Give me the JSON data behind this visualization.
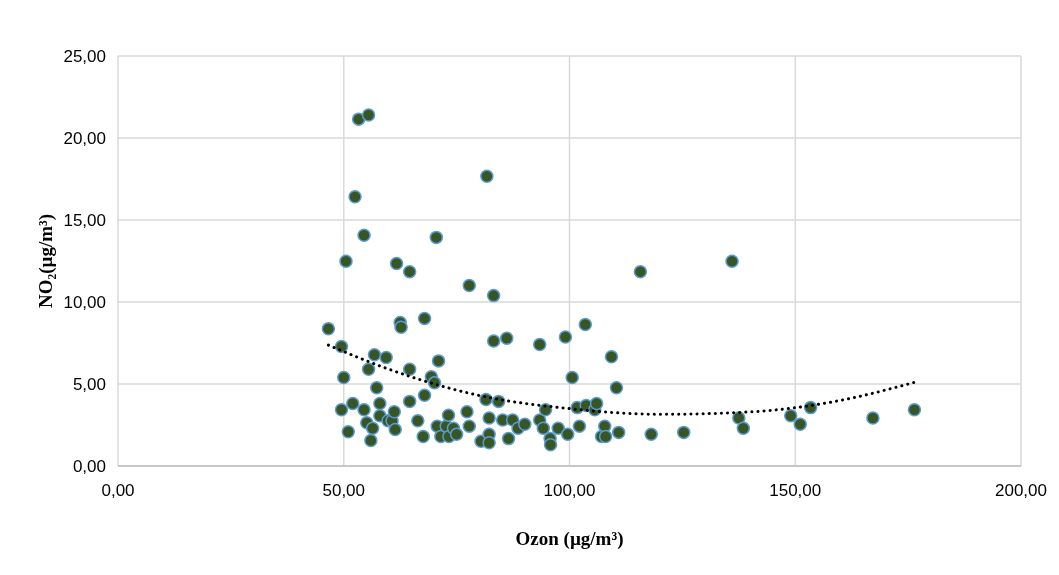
{
  "chart_data": {
    "type": "scatter",
    "xlabel": "Ozon (µg/m³)",
    "ylabel": "NO₂(µg/m³)",
    "xlim": [
      0,
      200
    ],
    "ylim": [
      0,
      25
    ],
    "xticks": [
      {
        "value": 0,
        "label": "0,00"
      },
      {
        "value": 50,
        "label": "50,00"
      },
      {
        "value": 100,
        "label": "100,00"
      },
      {
        "value": 150,
        "label": "150,00"
      },
      {
        "value": 200,
        "label": "200,00"
      }
    ],
    "yticks": [
      {
        "value": 0,
        "label": "0,00"
      },
      {
        "value": 5,
        "label": "5,00"
      },
      {
        "value": 10,
        "label": "10,00"
      },
      {
        "value": 15,
        "label": "15,00"
      },
      {
        "value": 20,
        "label": "20,00"
      },
      {
        "value": 25,
        "label": "25,00"
      }
    ],
    "grid": true,
    "marker": "circle",
    "series": [
      {
        "color": "#375623",
        "x": [
          46.6,
          49.5,
          50.0,
          49.5,
          50.5,
          51.0,
          52.0,
          52.5,
          53.3,
          55.5,
          54.5,
          54.5,
          55.1,
          55.5,
          56.0,
          56.4,
          56.8,
          57.3,
          58.0,
          58.0,
          59.4,
          59.8,
          60.7,
          61.2,
          61.4,
          61.7,
          62.5,
          62.7,
          64.6,
          64.6,
          64.6,
          66.4,
          67.6,
          67.9,
          67.9,
          69.4,
          70.1,
          70.5,
          70.7,
          71.0,
          71.5,
          72.7,
          73.2,
          73.3,
          74.3,
          75.0,
          77.3,
          77.8,
          77.8,
          80.4,
          81.5,
          81.7,
          82.2,
          82.2,
          82.2,
          83.2,
          83.2,
          84.3,
          85.2,
          86.1,
          86.5,
          87.4,
          88.6,
          90.1,
          93.4,
          93.4,
          94.2,
          94.7,
          95.7,
          95.8,
          97.5,
          99.1,
          99.6,
          100.6,
          101.7,
          102.2,
          103.5,
          103.7,
          105.6,
          106.0,
          107.1,
          107.8,
          108.0,
          109.3,
          110.4,
          110.9,
          115.7,
          118.1,
          125.3,
          136.0,
          137.5,
          138.5,
          149.0,
          151.1,
          153.4,
          167.2,
          176.4
        ],
        "values": [
          8.37,
          7.29,
          5.4,
          3.43,
          12.48,
          2.09,
          3.81,
          16.42,
          21.15,
          21.4,
          14.07,
          3.43,
          2.64,
          5.9,
          1.55,
          2.3,
          6.78,
          4.77,
          3.81,
          3.06,
          6.62,
          2.76,
          2.76,
          3.31,
          2.22,
          12.35,
          8.75,
          8.46,
          11.85,
          3.94,
          5.9,
          2.76,
          1.8,
          9.0,
          4.31,
          5.44,
          5.07,
          13.94,
          2.43,
          6.41,
          1.8,
          2.43,
          3.1,
          1.8,
          2.3,
          1.93,
          3.31,
          11.01,
          2.43,
          1.51,
          4.06,
          17.67,
          2.93,
          1.93,
          1.42,
          10.39,
          7.62,
          3.94,
          2.81,
          7.79,
          1.67,
          2.81,
          2.3,
          2.55,
          7.41,
          2.81,
          2.3,
          3.43,
          1.67,
          1.3,
          2.3,
          7.87,
          1.93,
          5.4,
          3.56,
          2.43,
          8.63,
          3.69,
          3.43,
          3.81,
          1.8,
          2.43,
          1.8,
          6.66,
          4.77,
          2.05,
          11.85,
          1.93,
          2.05,
          12.48,
          2.93,
          2.3,
          3.06,
          2.55,
          3.56,
          2.93,
          3.43
        ]
      },
      {
        "type": "line",
        "color": "#000000",
        "marker": "none",
        "line_style": "dotted",
        "x": [
          46.6,
          60,
          80,
          100,
          120,
          140,
          160,
          176.4
        ],
        "values": [
          7.37,
          5.9,
          4.3,
          3.5,
          3.15,
          3.3,
          4.0,
          5.1
        ]
      }
    ]
  }
}
